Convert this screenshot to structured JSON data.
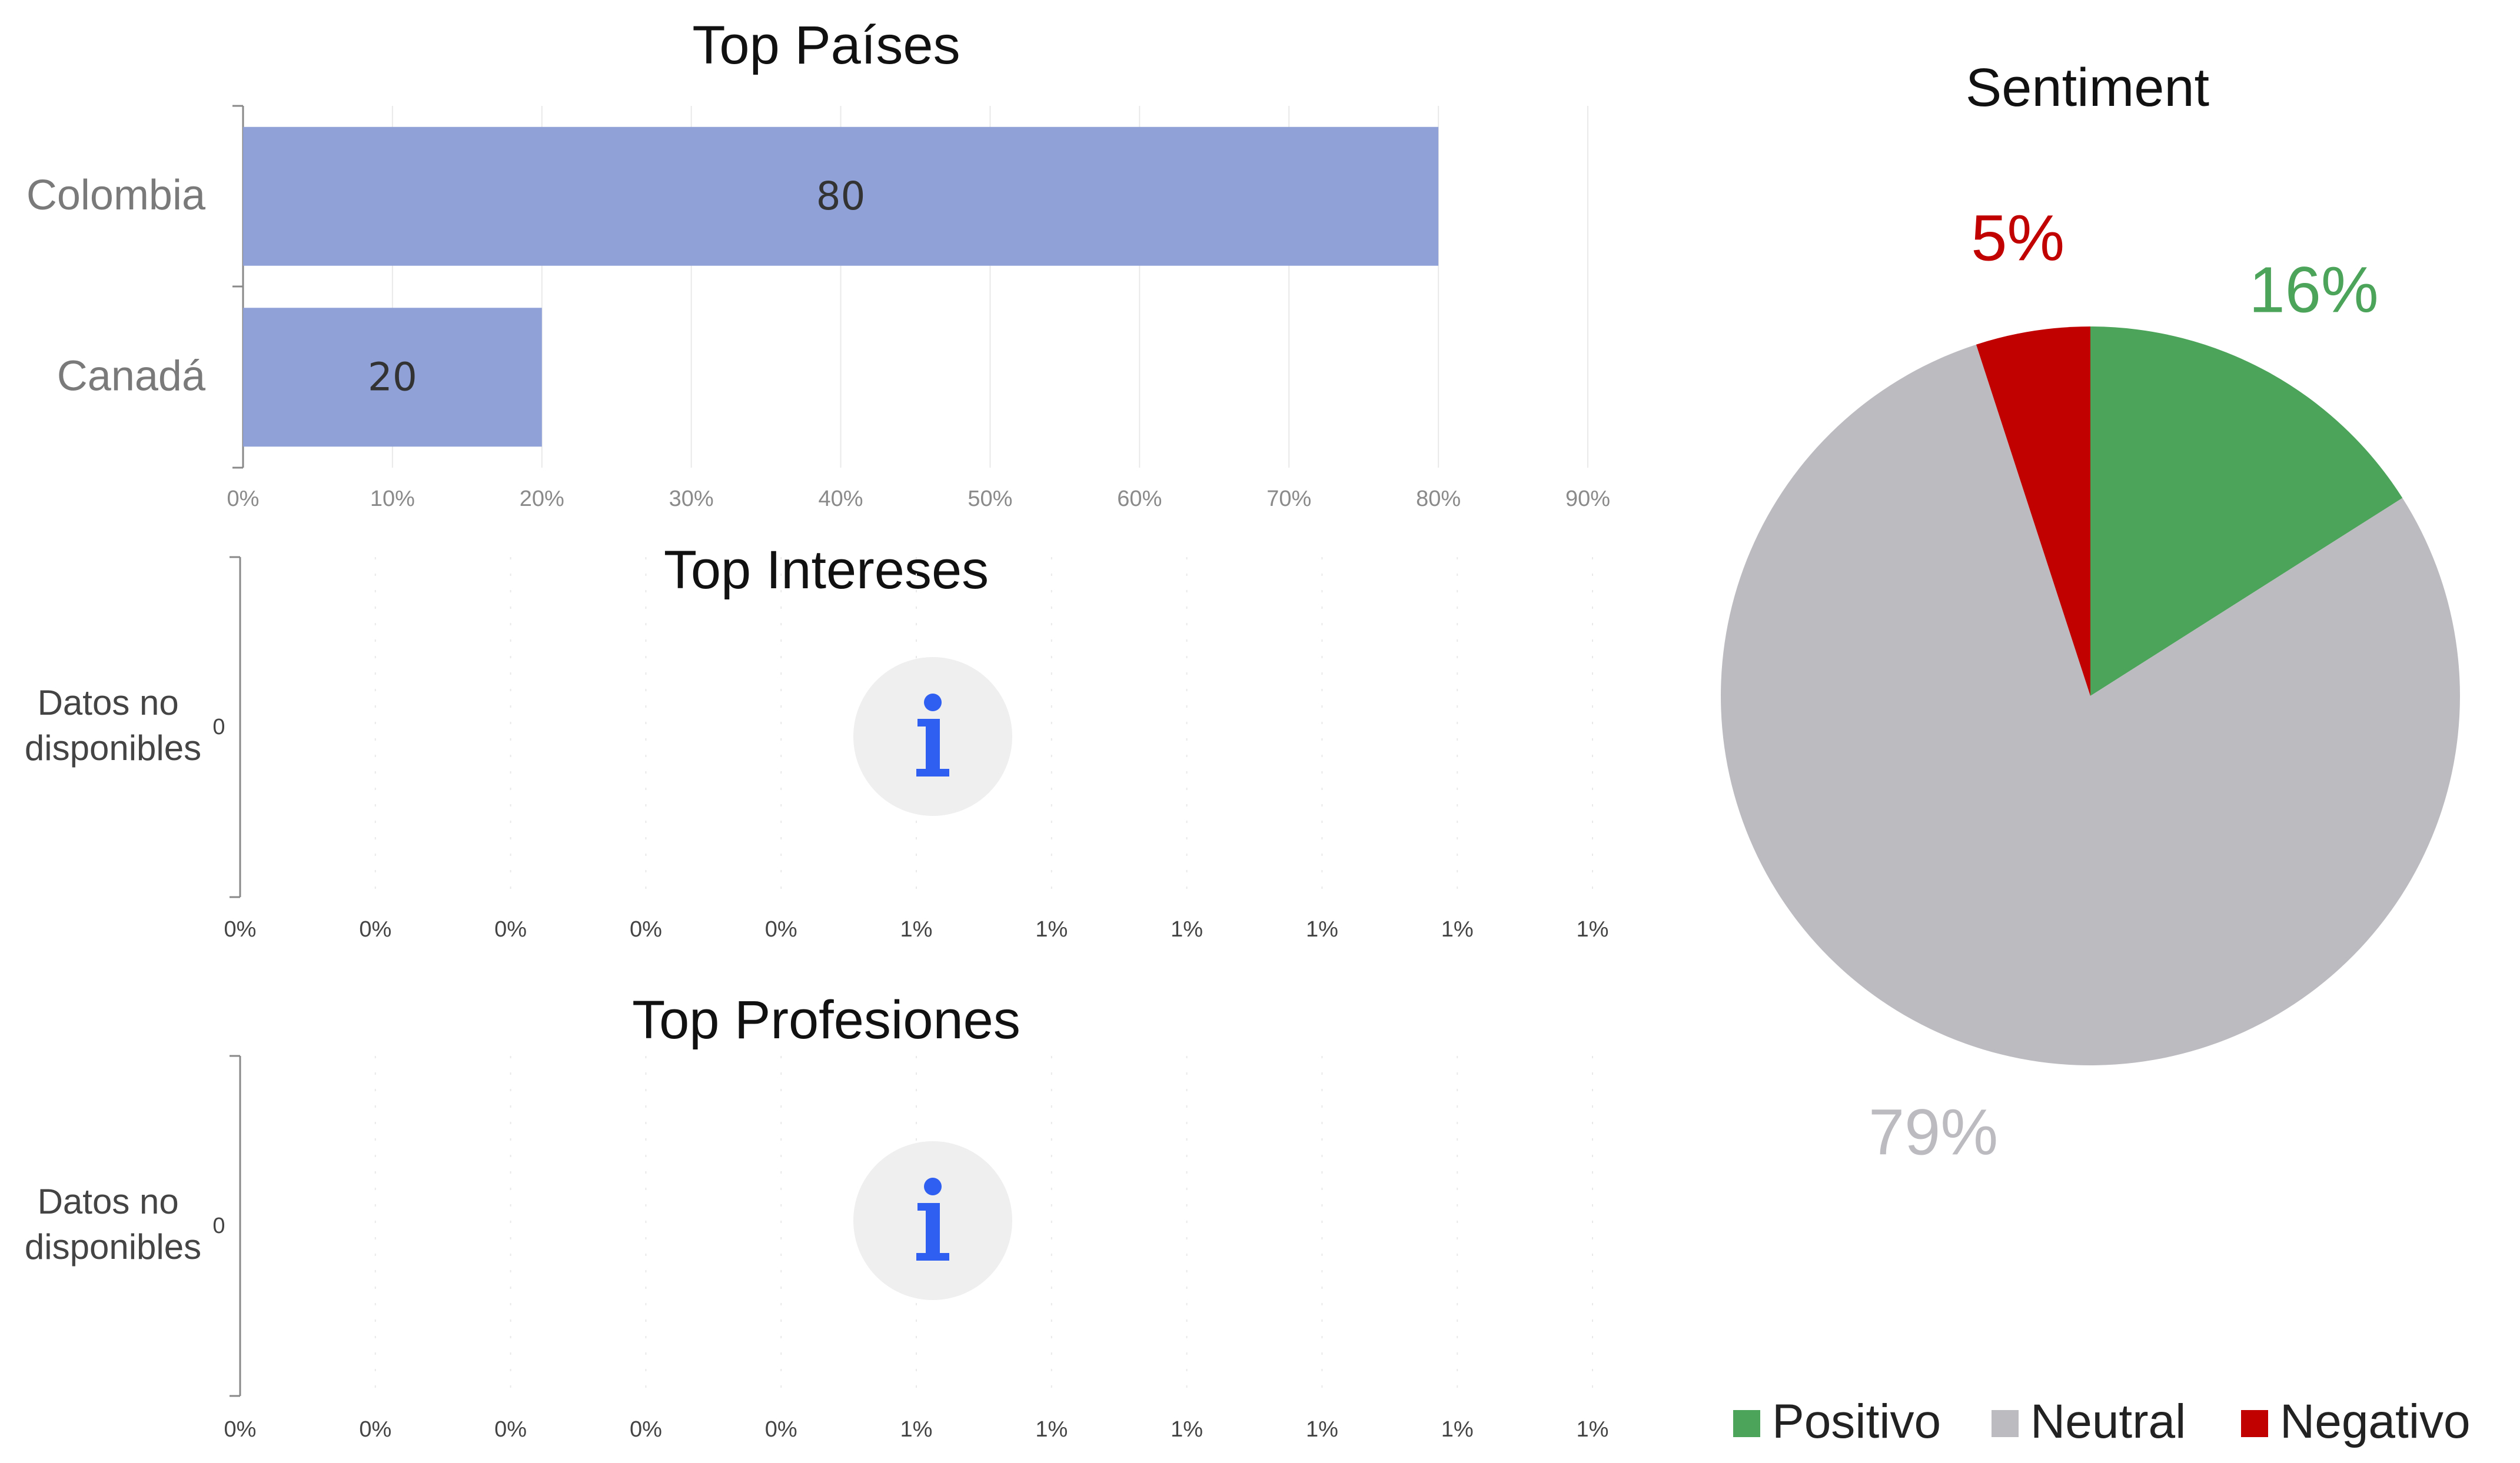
{
  "colors": {
    "bar": "#8fa1d7",
    "positive": "#4ca35a",
    "neutral": "#bbbbc0",
    "negative": "#c10000",
    "info_icon": "#2f5ff0",
    "info_bg": "#efefef",
    "grid": "#e9e9e9",
    "axis": "#888888"
  },
  "icons": {
    "info": "info-icon"
  },
  "chart_data": [
    {
      "type": "bar",
      "orientation": "horizontal",
      "title": "Top Países",
      "categories": [
        "Colombia",
        "Canadá"
      ],
      "values": [
        80,
        20
      ],
      "xlim": [
        0,
        90
      ],
      "xticks": [
        "0%",
        "10%",
        "20%",
        "30%",
        "40%",
        "50%",
        "60%",
        "70%",
        "80%",
        "90%"
      ],
      "grid": true
    },
    {
      "type": "bar",
      "orientation": "horizontal",
      "title": "Top Intereses",
      "categories": [
        "Datos no disponibles"
      ],
      "values": [
        0
      ],
      "value_label": "0",
      "xticks": [
        "0%",
        "0%",
        "0%",
        "0%",
        "0%",
        "1%",
        "1%",
        "1%",
        "1%",
        "1%",
        "1%"
      ],
      "grid": true
    },
    {
      "type": "bar",
      "orientation": "horizontal",
      "title": "Top Profesiones",
      "categories": [
        "Datos no disponibles"
      ],
      "values": [
        0
      ],
      "value_label": "0",
      "xticks": [
        "0%",
        "0%",
        "0%",
        "0%",
        "0%",
        "1%",
        "1%",
        "1%",
        "1%",
        "1%",
        "1%"
      ],
      "grid": true
    },
    {
      "type": "pie",
      "title": "Sentiment",
      "categories": [
        "Positivo",
        "Neutral",
        "Negativo"
      ],
      "values": [
        16,
        79,
        5
      ],
      "labels": [
        "16%",
        "79%",
        "5%"
      ],
      "legend": "bottom"
    }
  ]
}
